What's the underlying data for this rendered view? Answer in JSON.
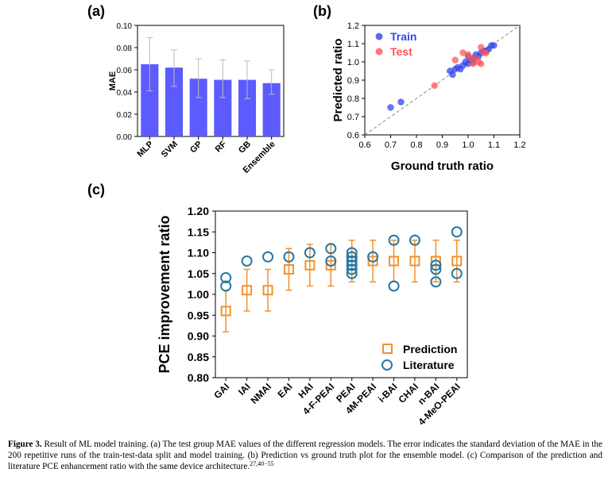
{
  "panel_labels": {
    "a": "(a)",
    "b": "(b)",
    "c": "(c)"
  },
  "colors": {
    "bar": "#5b5bff",
    "train": "#3344ee",
    "test": "#ff5555",
    "prediction": "#f0922b",
    "literature": "#2778a6"
  },
  "chart_data": [
    {
      "id": "a",
      "type": "bar",
      "categories": [
        "MLP",
        "SVM",
        "GP",
        "RF",
        "GB",
        "Ensemble"
      ],
      "values": [
        0.065,
        0.062,
        0.052,
        0.051,
        0.051,
        0.048
      ],
      "error_upper": [
        0.089,
        0.078,
        0.07,
        0.069,
        0.068,
        0.06
      ],
      "error_lower": [
        0.041,
        0.045,
        0.035,
        0.035,
        0.034,
        0.038
      ],
      "ylabel": "MAE",
      "ylim": [
        0,
        0.1
      ],
      "yticks": [
        "0.00",
        "0.02",
        "0.04",
        "0.06",
        "0.08",
        "0.10"
      ]
    },
    {
      "id": "b",
      "type": "scatter",
      "xlabel": "Ground truth ratio",
      "ylabel": "Predicted ratio",
      "xlim": [
        0.6,
        1.2
      ],
      "ylim": [
        0.6,
        1.2
      ],
      "xticks": [
        "0.6",
        "0.7",
        "0.8",
        "0.9",
        "1.0",
        "1.1",
        "1.2"
      ],
      "yticks": [
        "0.6",
        "0.7",
        "0.8",
        "0.9",
        "1.0",
        "1.1",
        "1.2"
      ],
      "legend_position": "top-left",
      "series": [
        {
          "name": "Train",
          "points": [
            [
              0.7,
              0.75
            ],
            [
              0.74,
              0.78
            ],
            [
              0.93,
              0.95
            ],
            [
              0.94,
              0.93
            ],
            [
              0.95,
              0.96
            ],
            [
              0.96,
              0.97
            ],
            [
              0.97,
              0.96
            ],
            [
              0.98,
              0.98
            ],
            [
              0.99,
              1.0
            ],
            [
              1.0,
              0.99
            ],
            [
              1.01,
              1.01
            ],
            [
              1.02,
              1.02
            ],
            [
              1.03,
              1.04
            ],
            [
              1.04,
              1.03
            ],
            [
              1.05,
              1.05
            ],
            [
              1.06,
              1.06
            ],
            [
              1.07,
              1.06
            ],
            [
              1.08,
              1.07
            ],
            [
              1.09,
              1.09
            ],
            [
              1.1,
              1.09
            ],
            [
              1.0,
              1.03
            ],
            [
              1.02,
              1.0
            ]
          ]
        },
        {
          "name": "Test",
          "points": [
            [
              0.87,
              0.87
            ],
            [
              0.95,
              1.01
            ],
            [
              0.98,
              1.05
            ],
            [
              1.0,
              1.04
            ],
            [
              1.01,
              1.02
            ],
            [
              1.02,
              0.99
            ],
            [
              1.03,
              1.02
            ],
            [
              1.04,
              1.0
            ],
            [
              1.05,
              1.08
            ],
            [
              1.06,
              1.05
            ],
            [
              1.07,
              1.05
            ],
            [
              1.05,
              0.99
            ]
          ]
        }
      ]
    },
    {
      "id": "c",
      "type": "scatter",
      "ylabel": "PCE improvement ratio",
      "ylim": [
        0.8,
        1.2
      ],
      "yticks": [
        "0.80",
        "0.85",
        "0.90",
        "0.95",
        "1.00",
        "1.05",
        "1.10",
        "1.15",
        "1.20"
      ],
      "legend_position": "bottom-right",
      "categories": [
        "GAI",
        "IAI",
        "NMAI",
        "EAI",
        "HAI",
        "4-F-PEAI",
        "PEAI",
        "4M-PEAI",
        "i-BAI",
        "CHAI",
        "n-BAI",
        "4-MeO-PEAI"
      ],
      "series": [
        {
          "name": "Prediction",
          "values": [
            0.96,
            1.01,
            1.01,
            1.06,
            1.07,
            1.07,
            1.08,
            1.08,
            1.08,
            1.08,
            1.08,
            1.08
          ],
          "error_upper": [
            1.01,
            1.06,
            1.06,
            1.11,
            1.12,
            1.12,
            1.13,
            1.13,
            1.13,
            1.13,
            1.13,
            1.13
          ],
          "error_lower": [
            0.91,
            0.96,
            0.96,
            1.01,
            1.02,
            1.02,
            1.03,
            1.03,
            1.03,
            1.03,
            1.03,
            1.03
          ]
        },
        {
          "name": "Literature",
          "points": [
            [
              0,
              1.02
            ],
            [
              0,
              1.04
            ],
            [
              1,
              1.08
            ],
            [
              2,
              1.09
            ],
            [
              3,
              1.09
            ],
            [
              4,
              1.1
            ],
            [
              5,
              1.08
            ],
            [
              5,
              1.11
            ],
            [
              6,
              1.05
            ],
            [
              6,
              1.06
            ],
            [
              6,
              1.07
            ],
            [
              6,
              1.08
            ],
            [
              6,
              1.09
            ],
            [
              6,
              1.1
            ],
            [
              7,
              1.09
            ],
            [
              8,
              1.02
            ],
            [
              8,
              1.13
            ],
            [
              9,
              1.13
            ],
            [
              10,
              1.03
            ],
            [
              10,
              1.06
            ],
            [
              10,
              1.07
            ],
            [
              11,
              1.05
            ],
            [
              11,
              1.15
            ]
          ]
        }
      ]
    }
  ],
  "caption": {
    "label": "Figure 3.",
    "text": " Result of ML model training. (a) The test group MAE values of the different regression models. The error indicates the standard deviation of the MAE in the 200 repetitive runs of the train-test-data split and model training. (b) Prediction vs ground truth plot for the ensemble model. (c) Comparison of the prediction and literature PCE enhancement ratio with the same device architecture.",
    "refs": "27,40−55"
  }
}
